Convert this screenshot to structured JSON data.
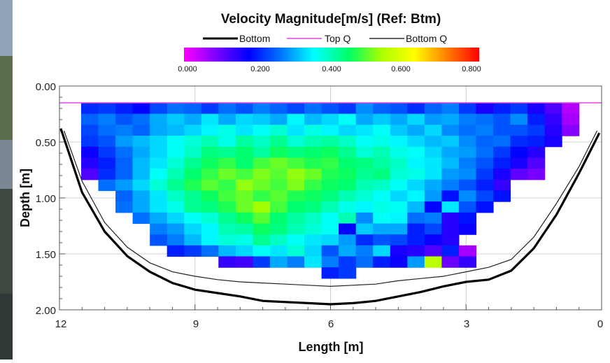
{
  "chart_data": {
    "type": "heatmap",
    "title": "Velocity Magnitude[m/s] (Ref: Btm)",
    "legend": [
      {
        "label": "Bottom",
        "color": "#000000",
        "style": "thick"
      },
      {
        "label": "Top Q",
        "color": "#e040e0",
        "style": "thin"
      },
      {
        "label": "Bottom Q",
        "color": "#000000",
        "style": "thin"
      }
    ],
    "colorbar": {
      "range": [
        0.0,
        0.8
      ],
      "tick_labels": [
        "0.000",
        "0.200",
        "0.400",
        "0.600",
        "0.800"
      ],
      "colormap": [
        "#ff00ff",
        "#7a00ff",
        "#0000ff",
        "#0078ff",
        "#00ffff",
        "#00ff66",
        "#aaff00",
        "#ffff00",
        "#ff8000",
        "#ff0000"
      ]
    },
    "xlabel": "Length [m]",
    "ylabel": "Depth [m]",
    "xlim": [
      12,
      0
    ],
    "ylim": [
      0,
      2
    ],
    "x_tick_labels": [
      "12",
      "9",
      "6",
      "3",
      "0"
    ],
    "y_tick_labels": [
      "0.00",
      "0.50",
      "1.00",
      "1.50",
      "2.00"
    ],
    "grid": true,
    "top_q_depth": 0.15,
    "bottom_profile": [
      [
        11.97,
        0.38
      ],
      [
        11.5,
        0.95
      ],
      [
        11.0,
        1.3
      ],
      [
        10.5,
        1.52
      ],
      [
        10.0,
        1.66
      ],
      [
        9.5,
        1.76
      ],
      [
        9.0,
        1.82
      ],
      [
        8.5,
        1.85
      ],
      [
        8.0,
        1.88
      ],
      [
        7.5,
        1.92
      ],
      [
        7.0,
        1.93
      ],
      [
        6.5,
        1.94
      ],
      [
        6.0,
        1.95
      ],
      [
        5.5,
        1.94
      ],
      [
        5.0,
        1.92
      ],
      [
        4.5,
        1.88
      ],
      [
        4.0,
        1.84
      ],
      [
        3.5,
        1.79
      ],
      [
        3.0,
        1.75
      ],
      [
        2.5,
        1.73
      ],
      [
        2.0,
        1.65
      ],
      [
        1.5,
        1.45
      ],
      [
        1.0,
        1.15
      ],
      [
        0.5,
        0.78
      ],
      [
        0.05,
        0.42
      ]
    ],
    "bottom_q_profile": [
      [
        11.9,
        0.4
      ],
      [
        11.5,
        0.85
      ],
      [
        11.0,
        1.22
      ],
      [
        10.5,
        1.44
      ],
      [
        10.0,
        1.58
      ],
      [
        9.5,
        1.66
      ],
      [
        9.0,
        1.7
      ],
      [
        8.5,
        1.73
      ],
      [
        8.0,
        1.75
      ],
      [
        7.5,
        1.76
      ],
      [
        7.0,
        1.77
      ],
      [
        6.5,
        1.78
      ],
      [
        6.0,
        1.79
      ],
      [
        5.5,
        1.78
      ],
      [
        5.0,
        1.77
      ],
      [
        4.5,
        1.74
      ],
      [
        4.0,
        1.72
      ],
      [
        3.5,
        1.7
      ],
      [
        3.0,
        1.66
      ],
      [
        2.5,
        1.62
      ],
      [
        2.0,
        1.55
      ],
      [
        1.5,
        1.35
      ],
      [
        1.0,
        1.05
      ],
      [
        0.5,
        0.72
      ],
      [
        0.1,
        0.4
      ]
    ],
    "cell_grid": {
      "length_start": 11.52,
      "length_step": 0.38,
      "depth_start": 0.15,
      "depth_step": 0.098,
      "velocity_rows": [
        [
          0.21,
          0.22,
          0.2,
          0.18,
          0.23,
          0.26,
          0.25,
          0.22,
          0.26,
          0.24,
          0.27,
          0.25,
          0.23,
          0.26,
          0.24,
          0.22,
          0.28,
          0.25,
          0.24,
          0.21,
          0.25,
          0.27,
          0.22,
          0.16,
          0.2,
          0.22,
          0.16,
          0.12,
          0.05
        ],
        [
          0.25,
          0.27,
          0.24,
          0.26,
          0.3,
          0.32,
          0.3,
          0.34,
          0.3,
          0.33,
          0.32,
          0.3,
          0.35,
          0.31,
          0.33,
          0.36,
          0.3,
          0.32,
          0.3,
          0.33,
          0.29,
          0.3,
          0.27,
          0.26,
          0.24,
          0.28,
          0.2,
          0.14,
          0.06
        ],
        [
          0.23,
          0.26,
          0.27,
          0.25,
          0.3,
          0.31,
          0.33,
          0.35,
          0.37,
          0.34,
          0.36,
          0.38,
          0.34,
          0.37,
          0.35,
          0.33,
          0.34,
          0.36,
          0.32,
          0.3,
          0.33,
          0.28,
          0.26,
          0.27,
          0.24,
          0.24,
          0.22,
          0.15,
          0.08
        ],
        [
          0.22,
          0.24,
          0.29,
          0.31,
          0.33,
          0.36,
          0.38,
          0.4,
          0.37,
          0.41,
          0.39,
          0.42,
          0.38,
          0.4,
          0.41,
          0.39,
          0.36,
          0.37,
          0.35,
          0.33,
          0.31,
          0.32,
          0.28,
          0.25,
          0.26,
          0.21,
          0.2,
          0.16
        ],
        [
          0.17,
          0.22,
          0.26,
          0.3,
          0.33,
          0.36,
          0.39,
          0.43,
          0.42,
          0.44,
          0.41,
          0.45,
          0.43,
          0.44,
          0.45,
          0.42,
          0.38,
          0.4,
          0.37,
          0.36,
          0.33,
          0.3,
          0.29,
          0.26,
          0.22,
          0.18,
          0.15
        ],
        [
          0.15,
          0.2,
          0.25,
          0.31,
          0.34,
          0.38,
          0.42,
          0.45,
          0.47,
          0.44,
          0.48,
          0.5,
          0.48,
          0.46,
          0.47,
          0.44,
          0.43,
          0.41,
          0.39,
          0.35,
          0.34,
          0.31,
          0.27,
          0.24,
          0.2,
          0.16,
          0.12
        ],
        [
          0.12,
          0.21,
          0.25,
          0.31,
          0.36,
          0.4,
          0.44,
          0.47,
          0.5,
          0.48,
          0.51,
          0.49,
          0.52,
          0.5,
          0.46,
          0.45,
          0.42,
          0.43,
          0.38,
          0.37,
          0.34,
          0.29,
          0.28,
          0.22,
          0.16,
          0.11,
          0.09
        ],
        [
          0.26,
          0.29,
          0.33,
          0.38,
          0.42,
          0.46,
          0.49,
          0.47,
          0.52,
          0.5,
          0.48,
          0.51,
          0.47,
          0.45,
          0.44,
          0.4,
          0.39,
          0.36,
          0.33,
          0.3,
          0.27,
          0.24,
          0.2,
          0.14
        ],
        [
          0.25,
          0.3,
          0.34,
          0.39,
          0.42,
          0.45,
          0.48,
          0.5,
          0.47,
          0.49,
          0.46,
          0.45,
          0.43,
          0.4,
          0.38,
          0.36,
          0.33,
          0.35,
          0.29,
          0.19,
          0.28,
          0.23,
          0.19
        ],
        [
          0.26,
          0.3,
          0.34,
          0.37,
          0.42,
          0.43,
          0.46,
          0.5,
          0.53,
          0.48,
          0.44,
          0.43,
          0.4,
          0.37,
          0.35,
          0.37,
          0.36,
          0.31,
          0.18,
          0.34,
          0.24,
          0.19
        ],
        [
          0.26,
          0.3,
          0.33,
          0.36,
          0.38,
          0.42,
          0.45,
          0.49,
          0.44,
          0.41,
          0.39,
          0.36,
          0.4,
          0.28,
          0.36,
          0.35,
          0.26,
          0.27,
          0.15,
          0.19
        ],
        [
          0.27,
          0.29,
          0.33,
          0.35,
          0.4,
          0.41,
          0.45,
          0.43,
          0.4,
          0.38,
          0.36,
          0.18,
          0.32,
          0.3,
          0.3,
          0.2,
          0.23,
          0.15,
          0.17
        ],
        [
          0.24,
          0.27,
          0.31,
          0.35,
          0.38,
          0.37,
          0.42,
          0.39,
          0.36,
          0.34,
          0.33,
          0.29,
          0.21,
          0.24,
          0.23,
          0.2,
          0.17,
          0.15
        ],
        [
          0.2,
          0.22,
          0.26,
          0.31,
          0.33,
          0.36,
          0.34,
          0.38,
          0.33,
          0.24,
          0.3,
          0.27,
          0.33,
          0.16,
          0.15,
          0.12,
          0.2,
          0.06
        ],
        [
          0.14,
          0.13,
          0.22,
          0.3,
          0.27,
          0.34,
          0.27,
          0.22,
          0.26,
          0.2,
          0.17,
          0.29,
          0.55,
          0.1,
          0.14
        ],
        [
          0.2,
          0.22
        ]
      ],
      "row_start_index": [
        0,
        0,
        0,
        0,
        0,
        0,
        0,
        1,
        2,
        2,
        3,
        4,
        4,
        5,
        8,
        14
      ]
    }
  }
}
